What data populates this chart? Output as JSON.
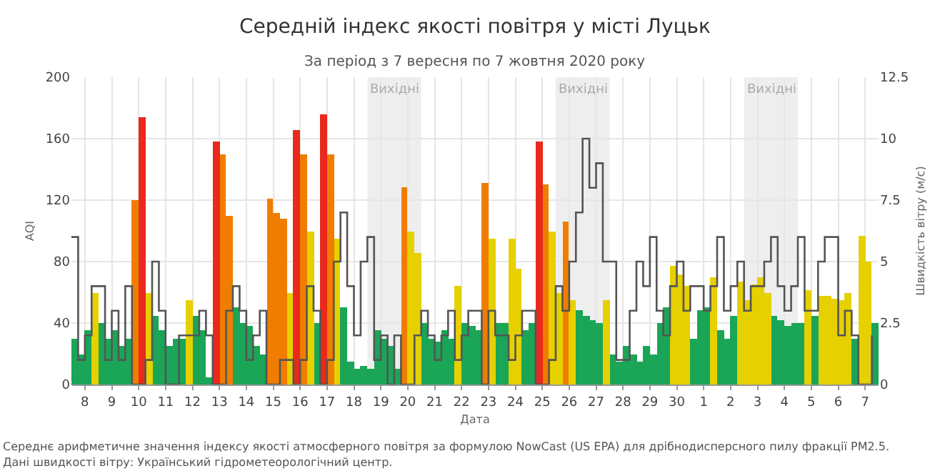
{
  "chart_data": {
    "type": "bar",
    "title": "Середній індекс якості повітря у місті Луцьк",
    "subtitle": "За період з 7 вересня по 7 жовтня 2020 року",
    "xlabel": "Дата",
    "ylabel": "AQI",
    "y2label": "Швидкість вітру (м/с)",
    "x": [
      "2020-09-08T00:00",
      "2020-09-08T06:00",
      "2020-09-08T12:00",
      "2020-09-08T18:00",
      "2020-09-09T00:00",
      "2020-09-09T06:00",
      "2020-09-09T12:00",
      "2020-09-09T18:00",
      "2020-09-10T00:00",
      "2020-09-10T06:00",
      "2020-09-10T12:00",
      "2020-09-10T18:00",
      "2020-09-11T00:00",
      "2020-09-11T06:00",
      "2020-09-11T12:00",
      "2020-09-11T18:00",
      "2020-09-12T00:00",
      "2020-09-12T06:00",
      "2020-09-12T12:00",
      "2020-09-12T18:00",
      "2020-09-13T00:00",
      "2020-09-13T06:00",
      "2020-09-13T12:00",
      "2020-09-13T18:00",
      "2020-09-14T00:00",
      "2020-09-14T06:00",
      "2020-09-14T12:00",
      "2020-09-14T18:00",
      "2020-09-15T00:00",
      "2020-09-15T06:00",
      "2020-09-15T12:00",
      "2020-09-15T18:00",
      "2020-09-16T00:00",
      "2020-09-16T06:00",
      "2020-09-16T12:00",
      "2020-09-16T18:00",
      "2020-09-17T00:00",
      "2020-09-17T06:00",
      "2020-09-17T12:00",
      "2020-09-17T18:00",
      "2020-09-18T00:00",
      "2020-09-18T06:00",
      "2020-09-18T12:00",
      "2020-09-18T18:00",
      "2020-09-19T00:00",
      "2020-09-19T06:00",
      "2020-09-19T12:00",
      "2020-09-19T18:00",
      "2020-09-20T00:00",
      "2020-09-20T06:00",
      "2020-09-20T12:00",
      "2020-09-20T18:00",
      "2020-09-21T00:00",
      "2020-09-21T06:00",
      "2020-09-21T12:00",
      "2020-09-21T18:00",
      "2020-09-22T00:00",
      "2020-09-22T06:00",
      "2020-09-22T12:00",
      "2020-09-22T18:00",
      "2020-09-23T00:00",
      "2020-09-23T06:00",
      "2020-09-23T12:00",
      "2020-09-23T18:00",
      "2020-09-24T00:00",
      "2020-09-24T06:00",
      "2020-09-24T12:00",
      "2020-09-24T18:00",
      "2020-09-25T00:00",
      "2020-09-25T06:00",
      "2020-09-25T12:00",
      "2020-09-25T18:00",
      "2020-09-26T00:00",
      "2020-09-26T06:00",
      "2020-09-26T12:00",
      "2020-09-26T18:00",
      "2020-09-27T00:00",
      "2020-09-27T06:00",
      "2020-09-27T12:00",
      "2020-09-27T18:00",
      "2020-09-28T00:00",
      "2020-09-28T06:00",
      "2020-09-28T12:00",
      "2020-09-28T18:00",
      "2020-09-29T00:00",
      "2020-09-29T06:00",
      "2020-09-29T12:00",
      "2020-09-29T18:00",
      "2020-09-30T00:00",
      "2020-09-30T06:00",
      "2020-09-30T12:00",
      "2020-09-30T18:00",
      "2020-10-01T00:00",
      "2020-10-01T06:00",
      "2020-10-01T12:00",
      "2020-10-01T18:00",
      "2020-10-02T00:00",
      "2020-10-02T06:00",
      "2020-10-02T12:00",
      "2020-10-02T18:00",
      "2020-10-03T00:00",
      "2020-10-03T06:00",
      "2020-10-03T12:00",
      "2020-10-03T18:00",
      "2020-10-04T00:00",
      "2020-10-04T06:00",
      "2020-10-04T12:00",
      "2020-10-04T18:00",
      "2020-10-05T00:00",
      "2020-10-05T06:00",
      "2020-10-05T12:00",
      "2020-10-05T18:00",
      "2020-10-06T00:00",
      "2020-10-06T06:00",
      "2020-10-06T12:00",
      "2020-10-06T18:00",
      "2020-10-07T00:00",
      "2020-10-07T06:00",
      "2020-10-07T12:00",
      "2020-10-07T18:00"
    ],
    "series": [
      {
        "values": [
          30,
          20,
          35,
          60,
          40,
          30,
          35,
          25,
          30,
          120,
          174,
          60,
          45,
          35,
          25,
          30,
          30,
          55,
          45,
          35,
          5,
          158,
          150,
          110,
          50,
          40,
          38,
          25,
          20,
          121,
          112,
          108,
          60,
          166,
          150,
          100,
          40,
          176,
          150,
          95,
          50,
          15,
          10,
          12,
          10,
          35,
          30,
          25,
          10,
          128,
          100,
          86,
          40,
          30,
          28,
          35,
          30,
          64,
          40,
          38,
          35,
          131,
          95,
          40,
          40,
          95,
          75,
          35,
          40,
          158,
          130,
          100,
          60,
          106,
          55,
          48,
          45,
          42,
          40,
          55,
          20,
          15,
          25,
          20,
          15,
          25,
          20,
          40,
          50,
          77,
          72,
          64,
          30,
          48,
          50,
          70,
          35,
          30,
          45,
          67,
          55,
          65,
          70,
          60,
          45,
          42,
          38,
          40,
          40,
          61,
          45,
          58,
          58,
          56,
          55,
          60,
          30,
          97,
          80,
          40
        ],
        "colors": [
          "#1aa557",
          "#1aa557",
          "#1aa557",
          "#e6d000",
          "#1aa557",
          "#1aa557",
          "#1aa557",
          "#1aa557",
          "#1aa557",
          "#f07d00",
          "#e8291c",
          "#e6d000",
          "#1aa557",
          "#1aa557",
          "#1aa557",
          "#1aa557",
          "#1aa557",
          "#e6d000",
          "#1aa557",
          "#1aa557",
          "#1aa557",
          "#e8291c",
          "#f07d00",
          "#f07d00",
          "#1aa557",
          "#1aa557",
          "#1aa557",
          "#1aa557",
          "#1aa557",
          "#f07d00",
          "#f07d00",
          "#f07d00",
          "#e6d000",
          "#e8291c",
          "#f07d00",
          "#e6d000",
          "#1aa557",
          "#e8291c",
          "#f07d00",
          "#e6d000",
          "#1aa557",
          "#1aa557",
          "#1aa557",
          "#1aa557",
          "#1aa557",
          "#1aa557",
          "#1aa557",
          "#1aa557",
          "#1aa557",
          "#f07d00",
          "#e6d000",
          "#e6d000",
          "#1aa557",
          "#1aa557",
          "#1aa557",
          "#1aa557",
          "#1aa557",
          "#e6d000",
          "#1aa557",
          "#1aa557",
          "#1aa557",
          "#f07d00",
          "#e6d000",
          "#1aa557",
          "#1aa557",
          "#e6d000",
          "#e6d000",
          "#1aa557",
          "#1aa557",
          "#e8291c",
          "#f07d00",
          "#e6d000",
          "#e6d000",
          "#f07d00",
          "#e6d000",
          "#1aa557",
          "#1aa557",
          "#1aa557",
          "#1aa557",
          "#e6d000",
          "#1aa557",
          "#1aa557",
          "#1aa557",
          "#1aa557",
          "#1aa557",
          "#1aa557",
          "#1aa557",
          "#1aa557",
          "#1aa557",
          "#e6d000",
          "#e6d000",
          "#e6d000",
          "#1aa557",
          "#1aa557",
          "#1aa557",
          "#e6d000",
          "#1aa557",
          "#1aa557",
          "#1aa557",
          "#e6d000",
          "#e6d000",
          "#e6d000",
          "#e6d000",
          "#e6d000",
          "#1aa557",
          "#1aa557",
          "#1aa557",
          "#1aa557",
          "#1aa557",
          "#e6d000",
          "#1aa557",
          "#e6d000",
          "#e6d000",
          "#e6d000",
          "#e6d000",
          "#e6d000",
          "#1aa557",
          "#e6d000",
          "#e6d000",
          "#1aa557"
        ]
      },
      {
        "type": "step",
        "axis": "y2",
        "color": "#555555",
        "values": [
          6,
          1,
          2,
          4,
          4,
          1,
          3,
          1,
          4,
          0,
          0,
          1,
          5,
          3,
          0,
          0,
          2,
          2,
          2,
          3,
          2,
          0,
          0,
          3,
          4,
          3,
          1,
          2,
          3,
          0,
          0,
          1,
          1,
          0,
          1,
          4,
          3,
          0,
          1,
          5,
          7,
          4,
          2,
          5,
          6,
          1,
          2,
          0,
          2,
          0,
          0,
          2,
          3,
          2,
          1,
          2,
          3,
          1,
          2,
          3,
          3,
          0,
          3,
          2,
          2,
          1,
          2,
          3,
          3,
          0,
          0,
          1,
          4,
          3,
          5,
          7,
          10,
          8,
          9,
          5,
          5,
          1,
          1,
          3,
          5,
          4,
          6,
          3,
          2,
          4,
          5,
          3,
          4,
          4,
          3,
          4,
          6,
          3,
          4,
          5,
          3,
          4,
          4,
          5,
          6,
          4,
          3,
          4,
          6,
          3,
          3,
          5,
          6,
          6,
          2,
          3,
          2,
          0,
          0,
          2
        ]
      }
    ],
    "xlim": [
      "2020-09-08T00:00",
      "2020-10-08T00:00"
    ],
    "xticks": [
      {
        "value": "2020-09-08T12:00",
        "label": "8"
      },
      {
        "value": "2020-09-09T12:00",
        "label": "9"
      },
      {
        "value": "2020-09-10T12:00",
        "label": "10"
      },
      {
        "value": "2020-09-11T12:00",
        "label": "11"
      },
      {
        "value": "2020-09-12T12:00",
        "label": "12"
      },
      {
        "value": "2020-09-13T12:00",
        "label": "13"
      },
      {
        "value": "2020-09-14T12:00",
        "label": "14"
      },
      {
        "value": "2020-09-15T12:00",
        "label": "15"
      },
      {
        "value": "2020-09-16T12:00",
        "label": "16"
      },
      {
        "value": "2020-09-17T12:00",
        "label": "17"
      },
      {
        "value": "2020-09-18T12:00",
        "label": "18"
      },
      {
        "value": "2020-09-19T12:00",
        "label": "19"
      },
      {
        "value": "2020-09-20T12:00",
        "label": "20"
      },
      {
        "value": "2020-09-21T12:00",
        "label": "21"
      },
      {
        "value": "2020-09-22T12:00",
        "label": "22"
      },
      {
        "value": "2020-09-23T12:00",
        "label": "23"
      },
      {
        "value": "2020-09-24T12:00",
        "label": "24"
      },
      {
        "value": "2020-09-25T12:00",
        "label": "25"
      },
      {
        "value": "2020-09-26T12:00",
        "label": "26"
      },
      {
        "value": "2020-09-27T12:00",
        "label": "27"
      },
      {
        "value": "2020-09-28T12:00",
        "label": "28"
      },
      {
        "value": "2020-09-29T12:00",
        "label": "29"
      },
      {
        "value": "2020-09-30T12:00",
        "label": "30"
      },
      {
        "value": "2020-10-01T12:00",
        "label": "1"
      },
      {
        "value": "2020-10-02T12:00",
        "label": "2"
      },
      {
        "value": "2020-10-03T12:00",
        "label": "3"
      },
      {
        "value": "2020-10-04T12:00",
        "label": "4"
      },
      {
        "value": "2020-10-05T12:00",
        "label": "5"
      },
      {
        "value": "2020-10-06T12:00",
        "label": "6"
      },
      {
        "value": "2020-10-07T12:00",
        "label": "7"
      }
    ],
    "ylim": [
      0,
      200
    ],
    "yticks": [
      0,
      40,
      80,
      120,
      160,
      200
    ],
    "y2lim": [
      0,
      12.5
    ],
    "y2ticks": [
      0,
      2.5,
      5,
      7.5,
      10,
      12.5
    ],
    "bands": [
      {
        "axis": "x",
        "from": "2020-09-19T00:00",
        "to": "2020-09-21T00:00",
        "label": "Вихідні",
        "color": "#eeeeee"
      },
      {
        "axis": "x",
        "from": "2020-09-26T00:00",
        "to": "2020-09-28T00:00",
        "label": "Вихідні",
        "color": "#eeeeee"
      },
      {
        "axis": "x",
        "from": "2020-10-03T00:00",
        "to": "2020-10-05T00:00",
        "label": "Вихідні",
        "color": "#eeeeee"
      }
    ],
    "annotations": [
      "Середнє арифметичне значення індексу якості атмосферного повітря за формулою NowCast (US EPA) для дрібнодисперсного пилу фракції PM2.5.",
      "Дані швидкості вітру: Український гідрометеорологічний центр."
    ],
    "grid": true
  }
}
